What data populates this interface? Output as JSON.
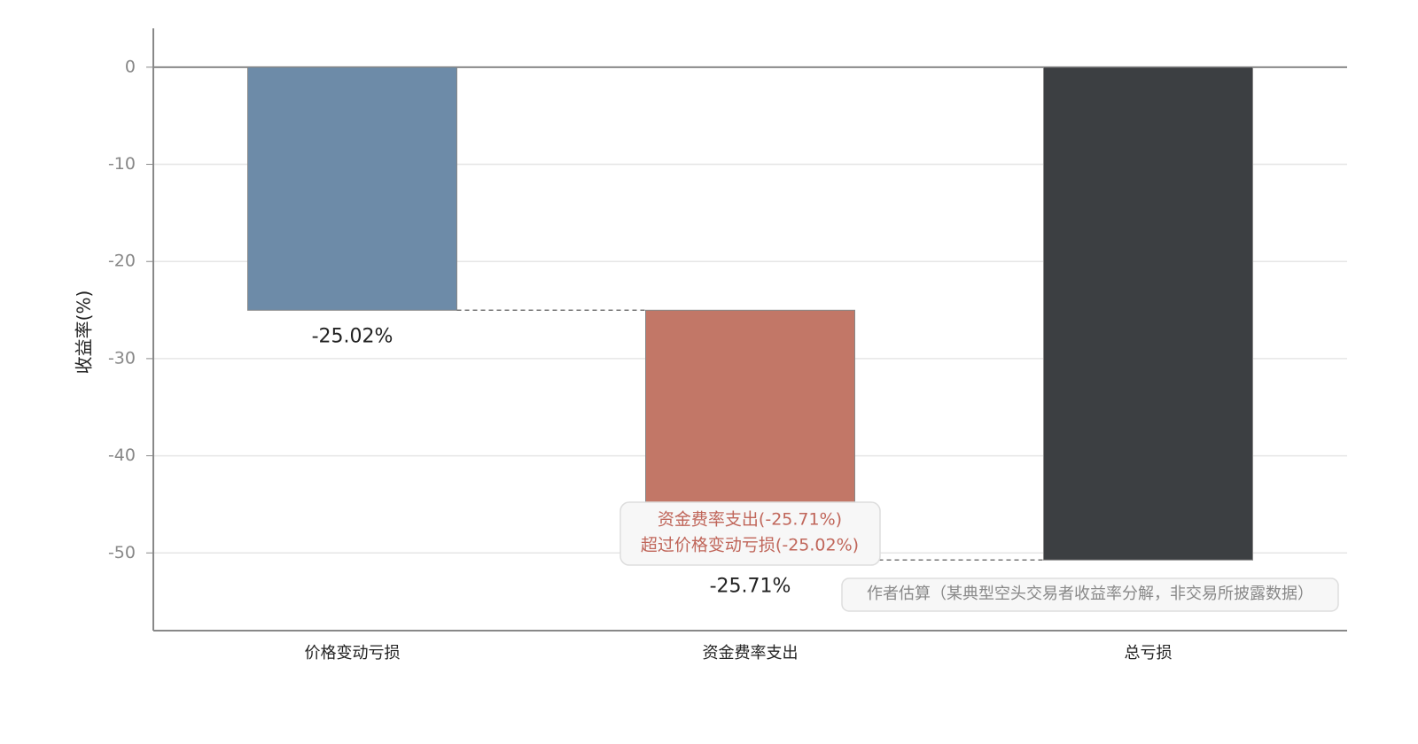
{
  "chart_data": {
    "type": "waterfall",
    "ylabel": "收益率(%)",
    "categories": [
      "价格变动亏损",
      "资金费率支出",
      "总亏损"
    ],
    "values": [
      -25.02,
      -25.71,
      -50.73
    ],
    "value_labels": [
      "-25.02%",
      "-25.71%",
      null
    ],
    "measure": [
      "relative",
      "relative",
      "total"
    ],
    "colors": [
      "#6d8ba8",
      "#c27767",
      "#3c3f42"
    ],
    "ylim": [
      -58,
      4
    ],
    "yticks": [
      -50,
      -40,
      -30,
      -20,
      -10,
      0
    ],
    "grid": true,
    "annotation": [
      "资金费率支出(-25.71%)",
      "超过价格变动亏损(-25.02%)"
    ],
    "note": "作者估算（某典型空头交易者收益率分解，非交易所披露数据）"
  }
}
